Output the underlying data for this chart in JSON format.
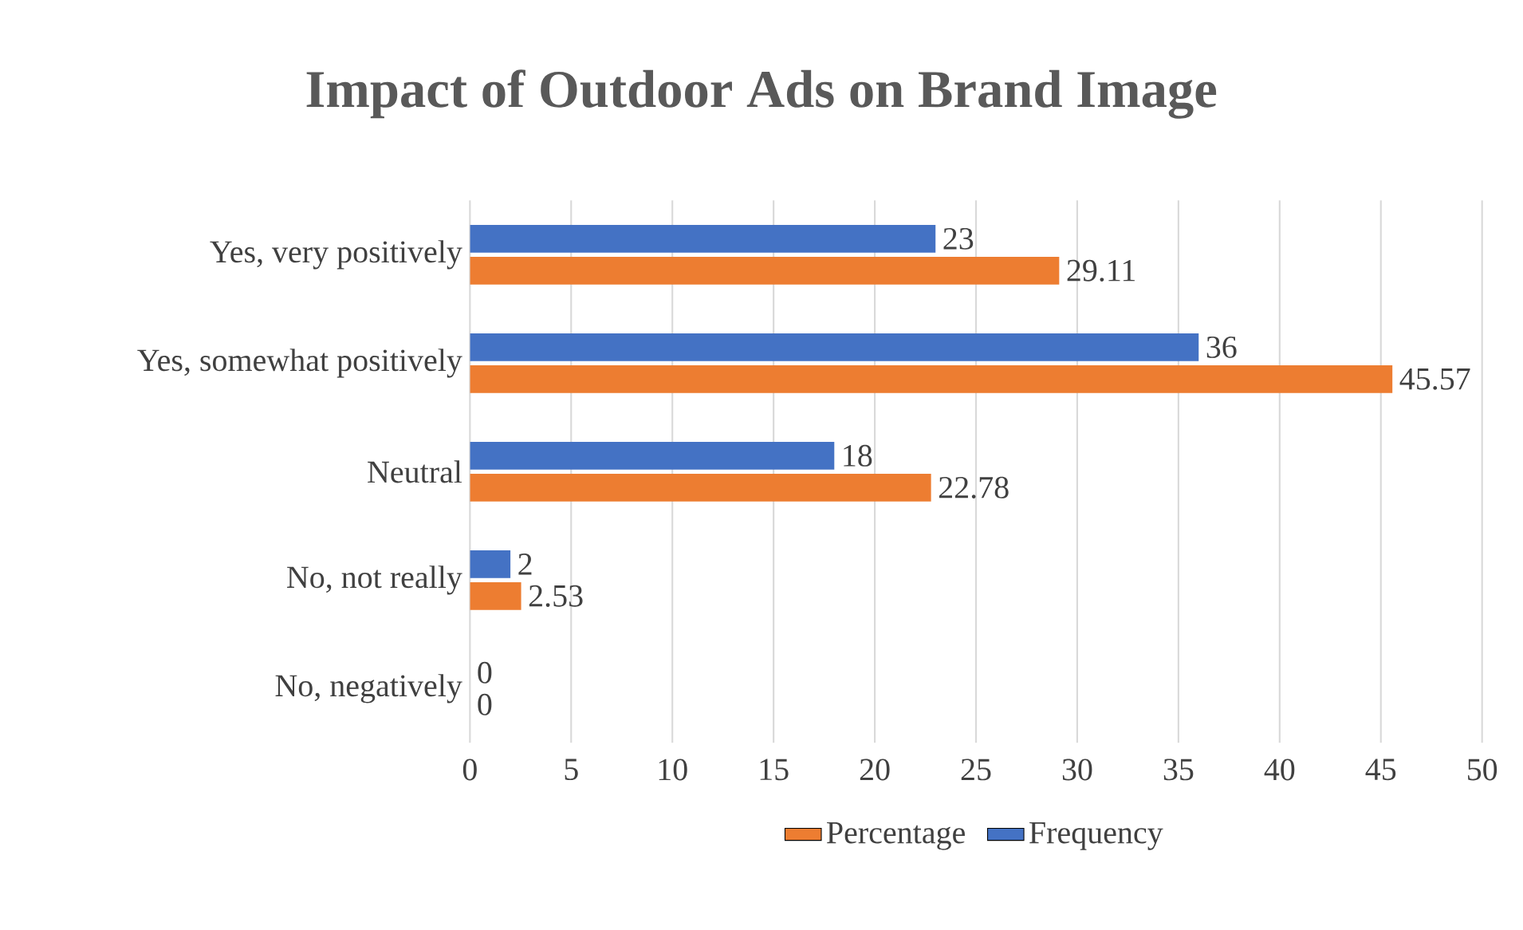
{
  "chart_data": {
    "type": "bar",
    "orientation": "horizontal",
    "title": "Impact of Outdoor Ads on Brand Image",
    "categories": [
      "Yes, very positively",
      "Yes, somewhat positively",
      "Neutral",
      "No, not really",
      "No, negatively"
    ],
    "series": [
      {
        "name": "Percentage",
        "color": "#ed7d31",
        "values": [
          29.11,
          45.57,
          22.78,
          2.53,
          0
        ]
      },
      {
        "name": "Frequency",
        "color": "#4472c4",
        "values": [
          23,
          36,
          18,
          2,
          0
        ]
      }
    ],
    "xlim": [
      0,
      50
    ],
    "xticks": [
      0,
      5,
      10,
      15,
      20,
      25,
      30,
      35,
      40,
      45,
      50
    ],
    "grid": "x",
    "legend": "bottom",
    "data_labels": true
  }
}
